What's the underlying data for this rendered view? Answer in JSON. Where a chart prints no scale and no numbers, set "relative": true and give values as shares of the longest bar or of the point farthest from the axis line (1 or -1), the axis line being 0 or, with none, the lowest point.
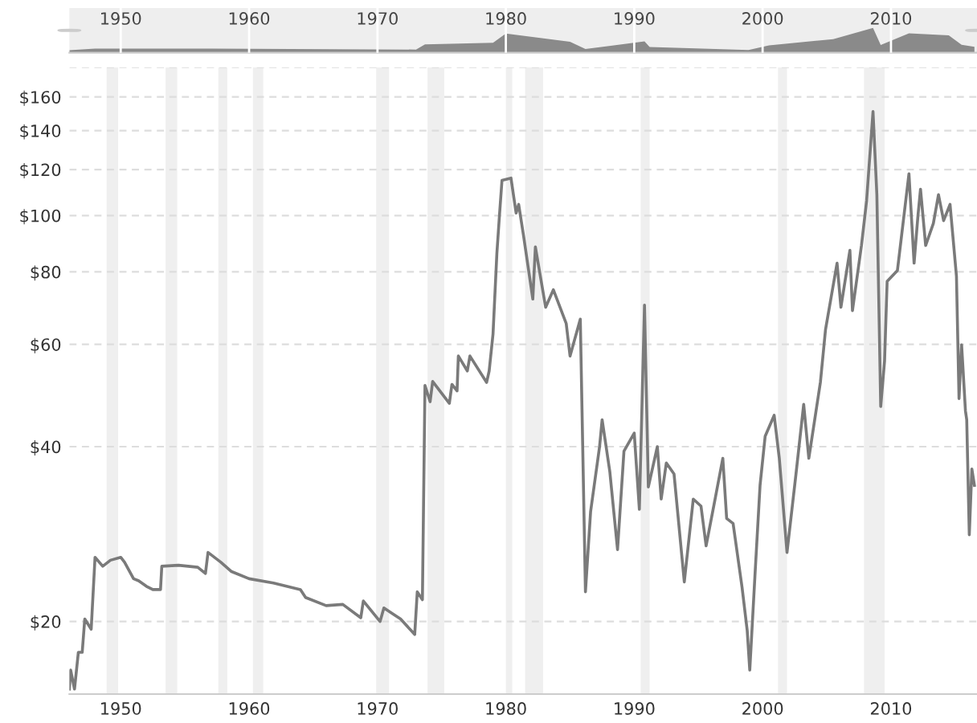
{
  "chart_data": [
    {
      "type": "line",
      "log": "y",
      "xlim": [
        1946,
        2016.7
      ],
      "ylim": [
        15,
        180
      ],
      "xticks": [
        1950,
        1960,
        1970,
        1980,
        1990,
        2000,
        2010
      ],
      "yticks": [
        {
          "value": 20,
          "label": "$20"
        },
        {
          "value": 40,
          "label": "$40"
        },
        {
          "value": 60,
          "label": "$60"
        },
        {
          "value": 80,
          "label": "$80"
        },
        {
          "value": 100,
          "label": "$100"
        },
        {
          "value": 120,
          "label": "$120"
        },
        {
          "value": 140,
          "label": "$140"
        },
        {
          "value": 160,
          "label": "$160"
        },
        {
          "value": 180,
          "label": null
        }
      ],
      "grid": "y",
      "legend": false,
      "marker": "none",
      "line_style": "solid",
      "bands": [
        {
          "axis": "x",
          "from": 1948.9,
          "to": 1949.8,
          "color": "#efefef"
        },
        {
          "axis": "x",
          "from": 1953.5,
          "to": 1954.4,
          "color": "#efefef"
        },
        {
          "axis": "x",
          "from": 1957.6,
          "to": 1958.3,
          "color": "#efefef"
        },
        {
          "axis": "x",
          "from": 1960.3,
          "to": 1961.1,
          "color": "#efefef"
        },
        {
          "axis": "x",
          "from": 1969.9,
          "to": 1970.9,
          "color": "#efefef"
        },
        {
          "axis": "x",
          "from": 1973.9,
          "to": 1975.2,
          "color": "#efefef"
        },
        {
          "axis": "x",
          "from": 1980.0,
          "to": 1980.5,
          "color": "#efefef"
        },
        {
          "axis": "x",
          "from": 1981.5,
          "to": 1982.9,
          "color": "#efefef"
        },
        {
          "axis": "x",
          "from": 1990.5,
          "to": 1991.2,
          "color": "#efefef"
        },
        {
          "axis": "x",
          "from": 2001.2,
          "to": 2001.9,
          "color": "#efefef"
        },
        {
          "axis": "x",
          "from": 2007.9,
          "to": 2009.5,
          "color": "#efefef"
        }
      ],
      "series": [
        {
          "color": "#7a7a7a",
          "x": [
            1946.0,
            1946.1,
            1946.4,
            1946.7,
            1947.0,
            1947.2,
            1947.7,
            1948.0,
            1948.6,
            1949.2,
            1950.0,
            1950.3,
            1951.0,
            1951.4,
            1952.0,
            1952.5,
            1953.1,
            1953.2,
            1954.5,
            1956.0,
            1956.6,
            1956.8,
            1957.8,
            1958.6,
            1960.0,
            1961.9,
            1964.0,
            1964.4,
            1966.0,
            1967.3,
            1968.7,
            1968.9,
            1970.2,
            1970.5,
            1971.8,
            1972.9,
            1973.1,
            1973.5,
            1973.7,
            1974.1,
            1974.3,
            1975.6,
            1975.8,
            1976.2,
            1976.3,
            1977.0,
            1977.2,
            1978.5,
            1978.7,
            1979.0,
            1979.3,
            1979.5,
            1979.7,
            1980.4,
            1980.8,
            1981.0,
            1981.4,
            1982.1,
            1982.3,
            1983.1,
            1983.7,
            1984.7,
            1985.0,
            1985.8,
            1986.2,
            1986.6,
            1987.3,
            1987.5,
            1988.1,
            1988.7,
            1989.2,
            1990.0,
            1990.4,
            1990.8,
            1991.1,
            1991.8,
            1992.1,
            1992.5,
            1993.1,
            1993.9,
            1994.6,
            1995.2,
            1995.6,
            1996.3,
            1996.9,
            1997.2,
            1997.7,
            1998.4,
            1998.8,
            1999.0,
            1999.4,
            1999.8,
            2000.2,
            2000.9,
            2001.3,
            2001.9,
            2002.6,
            2003.2,
            2003.6,
            2004.5,
            2004.9,
            2005.8,
            2006.1,
            2006.8,
            2007.0,
            2007.7,
            2008.1,
            2008.6,
            2008.9,
            2009.2,
            2009.5,
            2009.7,
            2010.5,
            2011.4,
            2011.8,
            2012.1,
            2012.3,
            2012.7,
            2013.3,
            2013.7,
            2014.1,
            2014.6,
            2015.1,
            2015.3,
            2015.5,
            2015.8,
            2015.9,
            2016.1,
            2016.3,
            2016.5
          ],
          "values": [
            15.3,
            16.5,
            15.3,
            17.7,
            17.7,
            20.2,
            19.4,
            25.8,
            24.9,
            25.5,
            25.8,
            25.3,
            23.7,
            23.5,
            23.0,
            22.7,
            22.7,
            24.9,
            25.0,
            24.8,
            24.2,
            26.3,
            25.3,
            24.4,
            23.7,
            23.3,
            22.7,
            22.0,
            21.3,
            21.4,
            20.3,
            21.7,
            20.0,
            21.1,
            20.2,
            19.0,
            22.5,
            21.8,
            51.0,
            47.8,
            51.8,
            47.5,
            51.2,
            49.9,
            57.3,
            54.0,
            57.3,
            51.6,
            54.0,
            62.5,
            86,
            99.9,
            115,
            116,
            101,
            104.5,
            91.6,
            71.8,
            88.3,
            69.5,
            74.5,
            65.2,
            57.3,
            66.3,
            22.5,
            30.9,
            40.0,
            44.5,
            36.2,
            26.6,
            39.3,
            42.2,
            31.2,
            70.1,
            34.1,
            40.0,
            32.5,
            37.5,
            35.9,
            23.4,
            32.5,
            31.6,
            27.0,
            32.5,
            38.2,
            30.1,
            29.5,
            22.9,
            19.3,
            16.5,
            23.9,
            34.3,
            41.7,
            45.3,
            38.2,
            26.3,
            35.9,
            47.3,
            38.2,
            51.6,
            63.6,
            82.8,
            69.5,
            87.1,
            68.6,
            88.8,
            106,
            151,
            108.6,
            46.9,
            56.2,
            77.0,
            80.4,
            118,
            82.8,
            99.9,
            111,
            88.8,
            96.9,
            108.6,
            98,
            104.5,
            78.6,
            48.4,
            59.9,
            46.1,
            44.5,
            28.2,
            36.6,
            34.3
          ]
        }
      ]
    },
    {
      "type": "area",
      "relative": true,
      "xlim": [
        1946,
        2016.7
      ],
      "xticks": [
        1950,
        1960,
        1970,
        1980,
        1990,
        2000,
        2010
      ],
      "tick_labels": "x",
      "grid": "x",
      "series": [
        {
          "color": "#8a8a8a",
          "x": [
            1946.0,
            1948.0,
            1957.0,
            1973.0,
            1973.7,
            1979.0,
            1980.0,
            1985.0,
            1986.2,
            1990.8,
            1991.2,
            1998.9,
            2000.5,
            2005.5,
            2008.6,
            2009.2,
            2011.4,
            2014.5,
            2015.5,
            2016.5
          ],
          "values": [
            0.1,
            0.17,
            0.17,
            0.13,
            0.34,
            0.4,
            0.77,
            0.44,
            0.15,
            0.46,
            0.23,
            0.11,
            0.3,
            0.55,
            1.0,
            0.31,
            0.78,
            0.7,
            0.32,
            0.24
          ]
        }
      ]
    }
  ]
}
